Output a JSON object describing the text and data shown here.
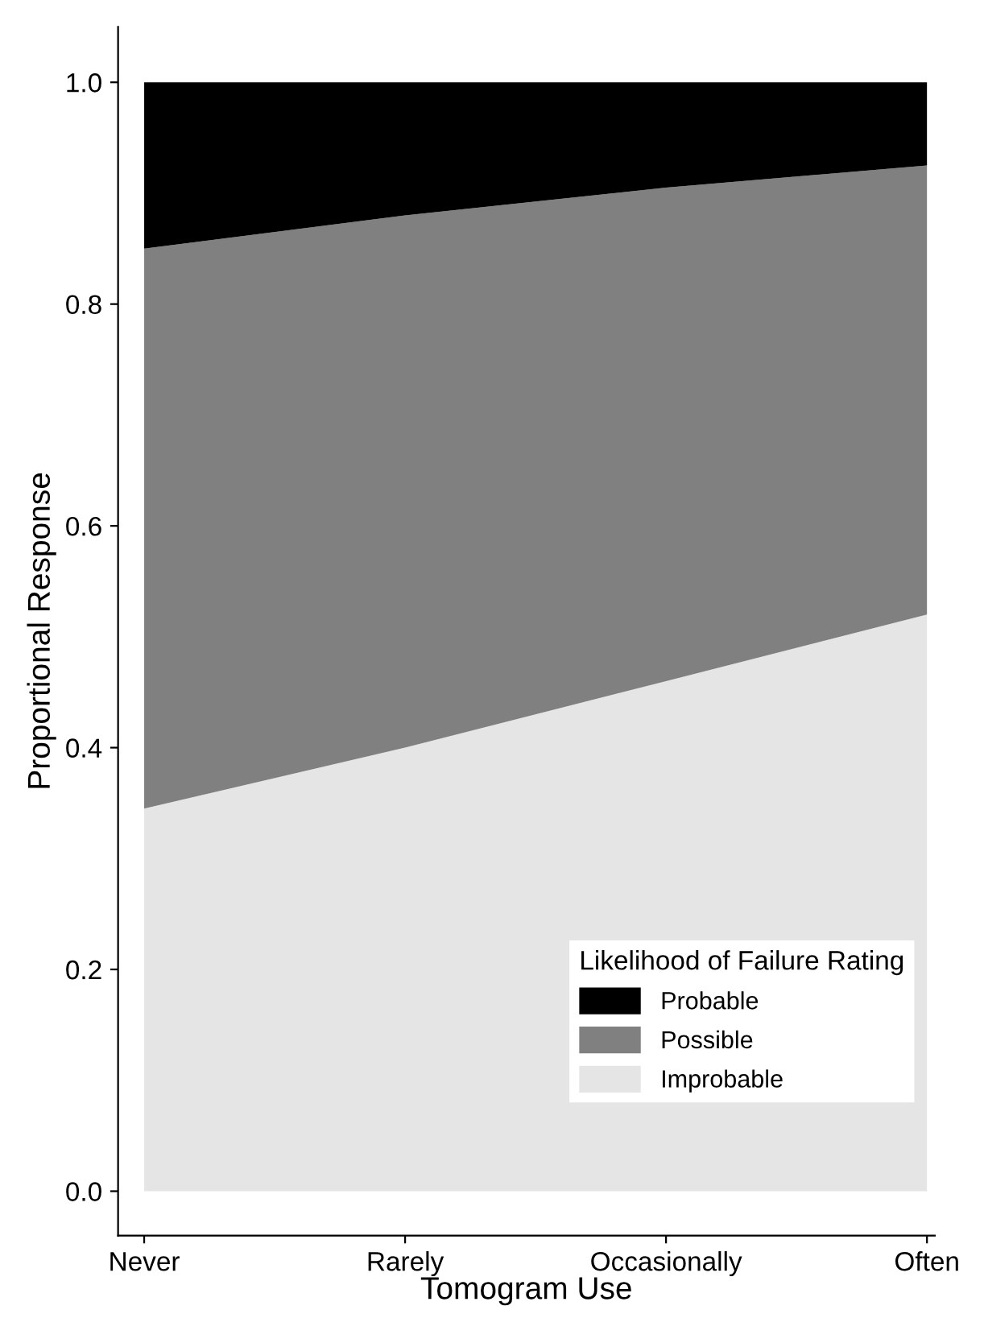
{
  "chart_data": {
    "type": "area",
    "stacked": true,
    "xlabel": "Tomogram Use",
    "ylabel": "Proportional Response",
    "legend_title": "Likelihood of Failure Rating",
    "categories": [
      "Never",
      "Rarely",
      "Occasionally",
      "Often"
    ],
    "series": [
      {
        "name": "Improbable",
        "color": "#e5e5e5",
        "values": [
          0.345,
          0.4,
          0.46,
          0.52
        ]
      },
      {
        "name": "Possible",
        "color": "#808080",
        "values": [
          0.505,
          0.48,
          0.445,
          0.405
        ]
      },
      {
        "name": "Probable",
        "color": "#000000",
        "values": [
          0.15,
          0.12,
          0.095,
          0.075
        ]
      }
    ],
    "ylim": [
      -0.04,
      1.05
    ],
    "yticks": [
      {
        "value": 0,
        "label": "0.0"
      },
      {
        "value": 0.2,
        "label": "0.2"
      },
      {
        "value": 0.4,
        "label": "0.4"
      },
      {
        "value": 0.6,
        "label": "0.6"
      },
      {
        "value": 0.8,
        "label": "0.8"
      },
      {
        "value": 1,
        "label": "1.0"
      }
    ],
    "grid": false,
    "legend": "bottom right"
  }
}
